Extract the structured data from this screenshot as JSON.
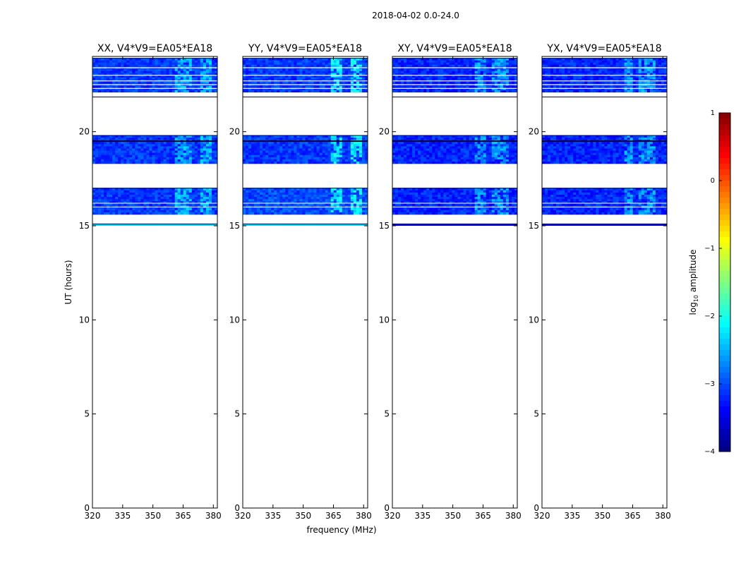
{
  "figure_title": "2018-04-02 0.0-24.0",
  "chart_data": [
    {
      "type": "heatmap",
      "title": "XX, V4*V9=EA05*EA18",
      "ylabel": "UT (hours)",
      "xlabel": "",
      "xlim": [
        320,
        382
      ],
      "ylim": [
        0,
        24
      ],
      "xticks": [
        320,
        335,
        350,
        365,
        380
      ],
      "yticks": [
        0,
        5,
        10,
        15,
        20
      ],
      "data_bands": [
        {
          "ut": [
            22.1,
            23.9
          ],
          "level": -3.1
        },
        {
          "ut": [
            18.3,
            19.8
          ],
          "level": -3.1
        },
        {
          "ut": [
            15.6,
            17.0
          ],
          "level": -3.1
        },
        {
          "ut": [
            15.0,
            15.1
          ],
          "level": -2.3
        }
      ],
      "bright_channels_mhz": [
        [
          361,
          369
        ],
        [
          373,
          379
        ]
      ],
      "bright_level": -2.5
    },
    {
      "type": "heatmap",
      "title": "YY, V4*V9=EA05*EA18",
      "ylabel": "",
      "xlabel": "frequency (MHz)",
      "xlim": [
        320,
        382
      ],
      "ylim": [
        0,
        24
      ],
      "xticks": [
        320,
        335,
        350,
        365,
        380
      ],
      "yticks": [
        0,
        5,
        10,
        15,
        20
      ],
      "data_bands": [
        {
          "ut": [
            22.1,
            23.9
          ],
          "level": -3.1
        },
        {
          "ut": [
            18.3,
            19.8
          ],
          "level": -3.1
        },
        {
          "ut": [
            15.6,
            17.0
          ],
          "level": -3.0
        },
        {
          "ut": [
            15.0,
            15.1
          ],
          "level": -2.3
        }
      ],
      "bright_channels_mhz": [
        [
          363,
          370
        ],
        [
          373,
          379
        ]
      ],
      "bright_level": -2.2
    },
    {
      "type": "heatmap",
      "title": "XY, V4*V9=EA05*EA18",
      "ylabel": "",
      "xlabel": "",
      "xlim": [
        320,
        382
      ],
      "ylim": [
        0,
        24
      ],
      "xticks": [
        320,
        335,
        350,
        365,
        380
      ],
      "yticks": [
        0,
        5,
        10,
        15,
        20
      ],
      "data_bands": [
        {
          "ut": [
            22.1,
            23.9
          ],
          "level": -3.2
        },
        {
          "ut": [
            18.3,
            19.8
          ],
          "level": -3.2
        },
        {
          "ut": [
            15.6,
            17.0
          ],
          "level": -3.2
        },
        {
          "ut": [
            15.0,
            15.1
          ],
          "level": -3.5
        }
      ],
      "bright_channels_mhz": [
        [
          361,
          367
        ],
        [
          370,
          378
        ]
      ],
      "bright_level": -2.6
    },
    {
      "type": "heatmap",
      "title": "YX, V4*V9=EA05*EA18",
      "ylabel": "",
      "xlabel": "",
      "xlim": [
        320,
        382
      ],
      "ylim": [
        0,
        24
      ],
      "xticks": [
        320,
        335,
        350,
        365,
        380
      ],
      "yticks": [
        0,
        5,
        10,
        15,
        20
      ],
      "data_bands": [
        {
          "ut": [
            22.1,
            23.9
          ],
          "level": -3.2
        },
        {
          "ut": [
            18.3,
            19.8
          ],
          "level": -3.2
        },
        {
          "ut": [
            15.6,
            17.0
          ],
          "level": -3.2
        },
        {
          "ut": [
            15.0,
            15.1
          ],
          "level": -3.5
        }
      ],
      "bright_channels_mhz": [
        [
          361,
          365
        ],
        [
          368,
          376
        ]
      ],
      "bright_level": -2.6
    }
  ],
  "colorbar": {
    "label": "log10 amplitude",
    "label_base": "log",
    "label_sub": "10",
    "label_rest": " amplitude",
    "range": [
      -4,
      1
    ],
    "ticks": [
      "1",
      "0",
      "−1",
      "−2",
      "−3",
      "−4"
    ],
    "tick_values": [
      1,
      0,
      -1,
      -2,
      -3,
      -4
    ],
    "colormap": "jet"
  }
}
